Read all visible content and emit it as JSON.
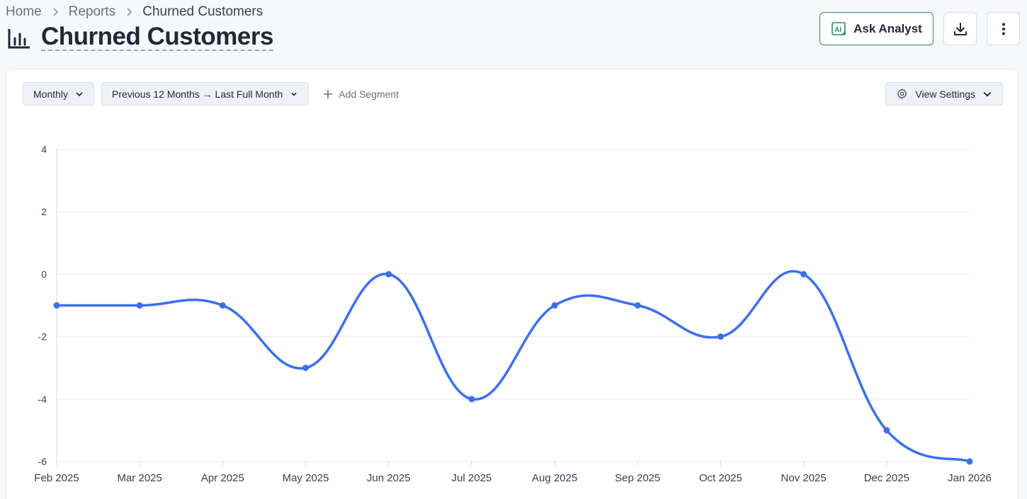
{
  "breadcrumb": {
    "home": "Home",
    "reports": "Reports",
    "current": "Churned Customers"
  },
  "header": {
    "title": "Churned Customers"
  },
  "actions": {
    "ask_label": "Ask Analyst",
    "ask_icon": "ai-sparkle-icon",
    "download_icon": "download-icon",
    "more_icon": "more-vertical-icon"
  },
  "toolbar": {
    "granularity": "Monthly",
    "range": "Previous 12 Months → Last Full Month",
    "add_segment": "Add Segment",
    "view_settings": "View Settings"
  },
  "colors": {
    "accent": "#3b6ff0",
    "ai_green": "#2d8c6b"
  },
  "chart_data": {
    "type": "line",
    "categories": [
      "Feb 2025",
      "Mar 2025",
      "Apr 2025",
      "May 2025",
      "Jun 2025",
      "Jul 2025",
      "Aug 2025",
      "Sep 2025",
      "Oct 2025",
      "Nov 2025",
      "Dec 2025",
      "Jan 2026"
    ],
    "series": [
      {
        "values": [
          -1,
          -1,
          -1,
          -3,
          0,
          -4,
          -1,
          -1,
          -2,
          0,
          -5,
          -6
        ]
      }
    ],
    "yticks": [
      4,
      2,
      0,
      -2,
      -4,
      -6
    ],
    "ylim": [
      -6,
      4
    ],
    "grid": true,
    "smooth": true
  }
}
